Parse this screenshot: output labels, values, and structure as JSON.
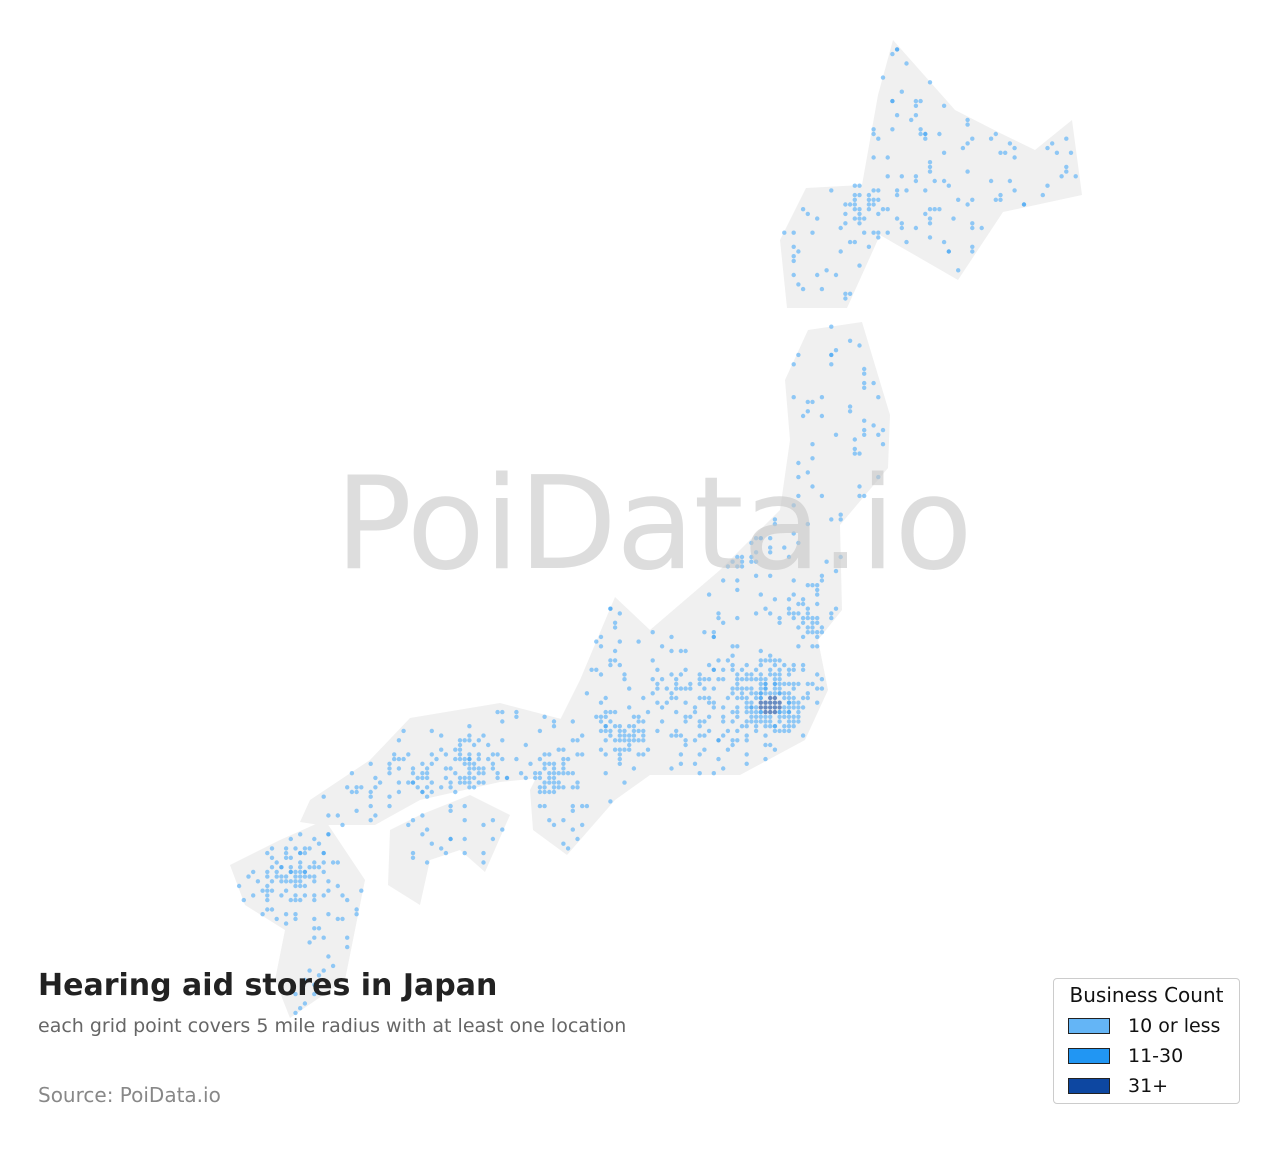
{
  "watermark": "PoiData.io",
  "title": "Hearing aid stores in Japan",
  "subtitle": "each grid point covers 5 mile radius with at least one location",
  "source": "Source: PoiData.io",
  "legend": {
    "title": "Business Count",
    "items": [
      {
        "label": "10 or less",
        "color": "#64b5f6"
      },
      {
        "label": "11-30",
        "color": "#2196f3"
      },
      {
        "label": "31+",
        "color": "#0d47a1"
      }
    ]
  },
  "colors": {
    "land": "#f0f0f0"
  }
}
